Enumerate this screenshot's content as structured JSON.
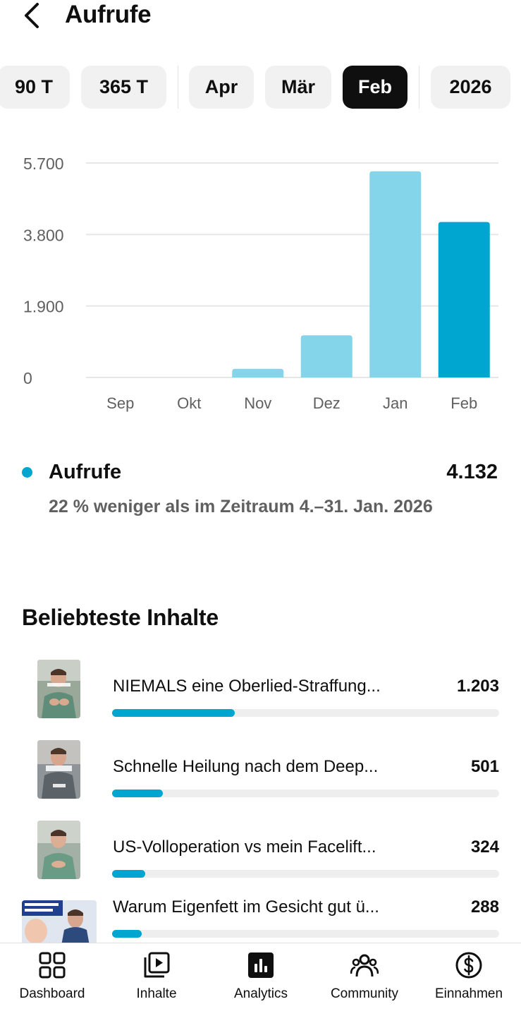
{
  "header": {
    "title": "Aufrufe"
  },
  "periods": [
    {
      "label": "90 T",
      "active": false
    },
    {
      "label": "365 T",
      "active": false
    },
    {
      "label": "Apr",
      "active": false
    },
    {
      "label": "Mär",
      "active": false
    },
    {
      "label": "Feb",
      "active": true
    },
    {
      "label": "2026",
      "active": false
    }
  ],
  "chart_data": {
    "type": "bar",
    "categories": [
      "Sep",
      "Okt",
      "Nov",
      "Dez",
      "Jan",
      "Feb"
    ],
    "values": [
      0,
      0,
      230,
      1120,
      5480,
      4132
    ],
    "highlighted_category": "Feb",
    "ylim": [
      0,
      5700
    ],
    "yticks": [
      0,
      1900,
      3800,
      5700
    ],
    "ytick_labels": [
      "0",
      "1.900",
      "3.800",
      "5.700"
    ],
    "title": "",
    "xlabel": "",
    "ylabel": "",
    "grid": true,
    "colors": {
      "bar": "#84d4ea",
      "highlight": "#00a6cf",
      "grid": "#e6e6e6"
    }
  },
  "metric": {
    "label": "Aufrufe",
    "value": "4.132",
    "comparison": "22 % weniger als im Zeitraum 4.–31. Jan. 2026",
    "color": "#00a6cf"
  },
  "top_content": {
    "title": "Beliebteste Inhalte",
    "items": [
      {
        "title": "NIEMALS eine Oberlied-Straffung...",
        "value": "1.203",
        "share": 0.317
      },
      {
        "title": "Schnelle Heilung nach dem Deep...",
        "value": "501",
        "share": 0.132
      },
      {
        "title": "US-Volloperation vs mein Facelift...",
        "value": "324",
        "share": 0.085
      },
      {
        "title": "Warum Eigenfett im Gesicht gut ü...",
        "value": "288",
        "share": 0.076
      }
    ]
  },
  "nav": {
    "items": [
      {
        "label": "Dashboard",
        "icon": "dashboard-icon",
        "active": false
      },
      {
        "label": "Inhalte",
        "icon": "content-icon",
        "active": false
      },
      {
        "label": "Analytics",
        "icon": "analytics-icon",
        "active": true
      },
      {
        "label": "Community",
        "icon": "community-icon",
        "active": false
      },
      {
        "label": "Einnahmen",
        "icon": "dollar-icon",
        "active": false
      }
    ]
  }
}
